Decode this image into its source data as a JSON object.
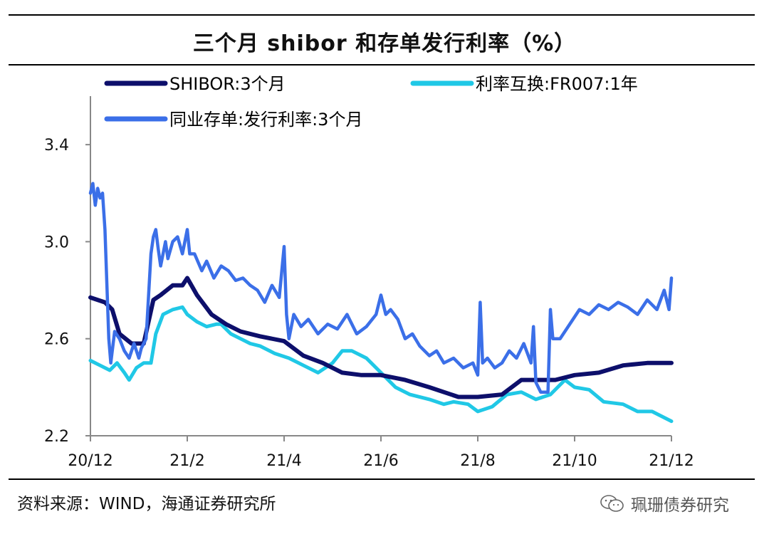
{
  "title": "三个月 shibor 和存单发行利率（%）",
  "source": "资料来源：WIND，海通证券研究所",
  "watermark": "珮珊债券研究",
  "chart_data": {
    "type": "line",
    "title": "三个月 shibor 和存单发行利率（%）",
    "xlabel": "",
    "ylabel": "",
    "ylim": [
      2.2,
      3.6
    ],
    "yticks": [
      2.2,
      2.6,
      3.0,
      3.4
    ],
    "ytick_labels": [
      "2.2",
      "2.6",
      "3.0",
      "3.4"
    ],
    "xlim": [
      0,
      12
    ],
    "x_ticks": [
      {
        "x": 0,
        "label": "20/12"
      },
      {
        "x": 2,
        "label": "21/2"
      },
      {
        "x": 4,
        "label": "21/4"
      },
      {
        "x": 6,
        "label": "21/6"
      },
      {
        "x": 8,
        "label": "21/8"
      },
      {
        "x": 10,
        "label": "21/10"
      },
      {
        "x": 12,
        "label": "21/12"
      }
    ],
    "series": [
      {
        "name": "SHIBOR:3个月",
        "color": "#0d0f6b",
        "x": [
          0,
          0.3,
          0.45,
          0.6,
          0.85,
          1.1,
          1.3,
          1.45,
          1.7,
          1.9,
          2.0,
          2.2,
          2.5,
          2.8,
          3.1,
          3.5,
          4.0,
          4.4,
          4.8,
          5.2,
          5.6,
          6.0,
          6.5,
          7.0,
          7.3,
          7.6,
          8.0,
          8.5,
          8.9,
          9.3,
          9.6,
          10.0,
          10.5,
          11.0,
          11.5,
          12.0
        ],
        "values": [
          2.77,
          2.75,
          2.72,
          2.62,
          2.58,
          2.58,
          2.76,
          2.78,
          2.82,
          2.82,
          2.85,
          2.78,
          2.7,
          2.66,
          2.63,
          2.61,
          2.59,
          2.53,
          2.5,
          2.46,
          2.45,
          2.45,
          2.43,
          2.4,
          2.38,
          2.36,
          2.36,
          2.37,
          2.43,
          2.43,
          2.43,
          2.45,
          2.46,
          2.49,
          2.5,
          2.5
        ]
      },
      {
        "name": "利率互换:FR007:1年",
        "color": "#20c8e6",
        "x": [
          0,
          0.2,
          0.4,
          0.55,
          0.7,
          0.8,
          0.95,
          1.1,
          1.25,
          1.35,
          1.5,
          1.7,
          1.9,
          2.0,
          2.2,
          2.4,
          2.6,
          2.7,
          2.9,
          3.1,
          3.3,
          3.5,
          3.8,
          4.1,
          4.4,
          4.7,
          5.0,
          5.2,
          5.4,
          5.7,
          6.0,
          6.3,
          6.6,
          7.0,
          7.3,
          7.5,
          7.8,
          8.0,
          8.3,
          8.6,
          8.9,
          9.2,
          9.5,
          9.8,
          10.0,
          10.3,
          10.6,
          11.0,
          11.3,
          11.6,
          12.0
        ],
        "values": [
          2.51,
          2.49,
          2.47,
          2.5,
          2.46,
          2.43,
          2.48,
          2.5,
          2.5,
          2.62,
          2.7,
          2.72,
          2.73,
          2.7,
          2.67,
          2.65,
          2.66,
          2.66,
          2.62,
          2.6,
          2.58,
          2.57,
          2.54,
          2.52,
          2.49,
          2.46,
          2.5,
          2.55,
          2.55,
          2.52,
          2.46,
          2.4,
          2.37,
          2.35,
          2.33,
          2.34,
          2.33,
          2.3,
          2.32,
          2.37,
          2.38,
          2.35,
          2.37,
          2.43,
          2.4,
          2.39,
          2.34,
          2.33,
          2.3,
          2.3,
          2.26
        ]
      },
      {
        "name": "同业存单:发行利率:3个月",
        "color": "#3b6fe8",
        "x": [
          0,
          0.05,
          0.1,
          0.15,
          0.2,
          0.25,
          0.3,
          0.38,
          0.42,
          0.5,
          0.6,
          0.7,
          0.8,
          0.9,
          1.0,
          1.05,
          1.15,
          1.25,
          1.3,
          1.35,
          1.4,
          1.45,
          1.55,
          1.6,
          1.7,
          1.8,
          1.9,
          2.0,
          2.05,
          2.15,
          2.3,
          2.4,
          2.55,
          2.7,
          2.85,
          3.0,
          3.15,
          3.3,
          3.45,
          3.6,
          3.75,
          3.9,
          4.0,
          4.05,
          4.1,
          4.2,
          4.35,
          4.5,
          4.7,
          4.9,
          5.1,
          5.3,
          5.5,
          5.7,
          5.9,
          6.0,
          6.1,
          6.2,
          6.35,
          6.5,
          6.65,
          6.8,
          7.0,
          7.15,
          7.3,
          7.5,
          7.7,
          7.9,
          8.0,
          8.05,
          8.1,
          8.2,
          8.35,
          8.5,
          8.65,
          8.8,
          8.95,
          9.1,
          9.15,
          9.2,
          9.3,
          9.45,
          9.5,
          9.55,
          9.7,
          9.9,
          10.1,
          10.3,
          10.5,
          10.7,
          10.9,
          11.1,
          11.3,
          11.5,
          11.7,
          11.85,
          11.95,
          12.0
        ],
        "values": [
          3.2,
          3.24,
          3.15,
          3.22,
          3.18,
          3.2,
          3.05,
          2.6,
          2.5,
          2.63,
          2.6,
          2.55,
          2.52,
          2.58,
          2.52,
          2.56,
          2.6,
          2.95,
          3.02,
          3.05,
          2.97,
          2.9,
          3.0,
          2.93,
          3.0,
          3.02,
          2.95,
          3.05,
          2.95,
          2.95,
          2.88,
          2.92,
          2.85,
          2.9,
          2.88,
          2.84,
          2.85,
          2.82,
          2.8,
          2.75,
          2.82,
          2.77,
          2.98,
          2.7,
          2.6,
          2.7,
          2.65,
          2.68,
          2.62,
          2.66,
          2.64,
          2.7,
          2.62,
          2.65,
          2.7,
          2.78,
          2.7,
          2.72,
          2.68,
          2.6,
          2.62,
          2.57,
          2.53,
          2.55,
          2.5,
          2.52,
          2.48,
          2.5,
          2.45,
          2.75,
          2.5,
          2.52,
          2.48,
          2.5,
          2.55,
          2.52,
          2.58,
          2.5,
          2.65,
          2.42,
          2.38,
          2.38,
          2.72,
          2.6,
          2.6,
          2.66,
          2.72,
          2.7,
          2.74,
          2.72,
          2.75,
          2.73,
          2.7,
          2.76,
          2.72,
          2.8,
          2.72,
          2.85
        ]
      }
    ]
  }
}
